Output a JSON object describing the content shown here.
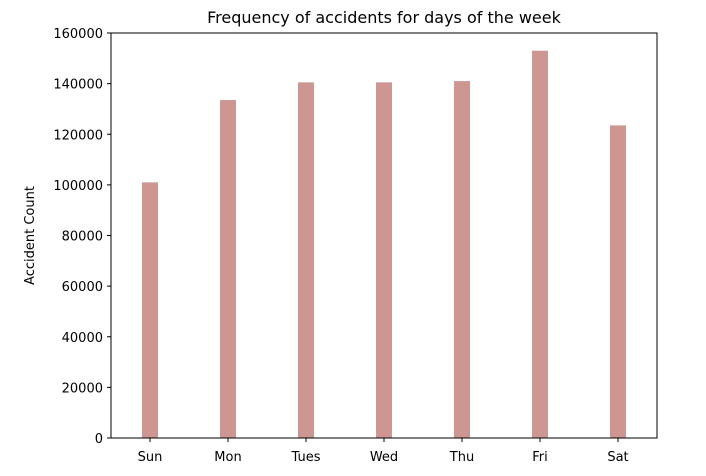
{
  "chart_data": {
    "type": "bar",
    "title": "Frequency of accidents for days of the week",
    "xlabel": "",
    "ylabel": "Accident Count",
    "categories": [
      "Sun",
      "Mon",
      "Tues",
      "Wed",
      "Thu",
      "Fri",
      "Sat"
    ],
    "values": [
      101000,
      133500,
      140500,
      140500,
      141000,
      153000,
      123500
    ],
    "ylim": [
      0,
      160000
    ],
    "yticks": [
      0,
      20000,
      40000,
      60000,
      80000,
      100000,
      120000,
      140000,
      160000
    ],
    "bar_color": "#cd9690",
    "grid": false,
    "legend": "none"
  }
}
